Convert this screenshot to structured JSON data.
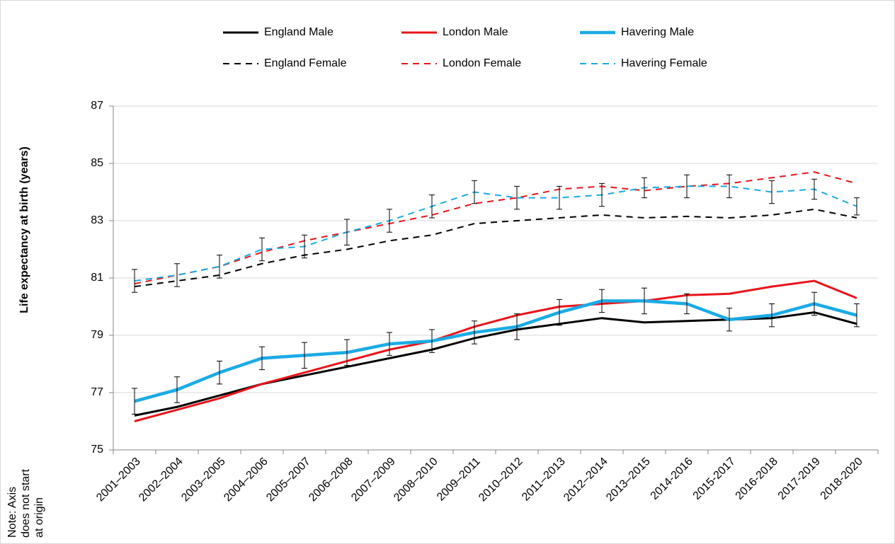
{
  "chart_data": {
    "type": "line",
    "y_label": "Life expectancy at birth (years)",
    "note": [
      "Note: Axis",
      "does not start",
      "at origin"
    ],
    "categories": [
      "2001–2003",
      "2002–2004",
      "2003–2005",
      "2004–2006",
      "2005–2007",
      "2006–2008",
      "2007–2009",
      "2008–2010",
      "2009–2011",
      "2010–2012",
      "2011–2013",
      "2012–2014",
      "2013–2015",
      "2014-2016",
      "2015-2017",
      "2016-2018",
      "2017-2019",
      "2018-2020"
    ],
    "series": [
      {
        "name": "England Male",
        "color": "#000000",
        "dash": false,
        "values": [
          76.2,
          76.5,
          76.9,
          77.3,
          77.6,
          77.9,
          78.2,
          78.5,
          78.9,
          79.2,
          79.4,
          79.6,
          79.45,
          79.5,
          79.55,
          79.6,
          79.8,
          79.4
        ]
      },
      {
        "name": "London Male",
        "color": "#e8141b",
        "dash": false,
        "values": [
          76.0,
          76.4,
          76.8,
          77.3,
          77.7,
          78.1,
          78.5,
          78.8,
          79.3,
          79.7,
          80.0,
          80.1,
          80.2,
          80.4,
          80.45,
          80.7,
          80.9,
          80.3
        ]
      },
      {
        "name": "Havering Male",
        "color": "#1aabe6",
        "dash": false,
        "values": [
          76.7,
          77.1,
          77.7,
          78.2,
          78.3,
          78.4,
          78.7,
          78.8,
          79.1,
          79.3,
          79.8,
          80.2,
          80.2,
          80.1,
          79.55,
          79.7,
          80.1,
          79.7
        ],
        "errors": [
          0.45,
          0.45,
          0.4,
          0.4,
          0.45,
          0.45,
          0.4,
          0.4,
          0.4,
          0.45,
          0.45,
          0.4,
          0.45,
          0.35,
          0.4,
          0.4,
          0.4,
          0.4
        ]
      },
      {
        "name": "England Female",
        "color": "#000000",
        "dash": true,
        "values": [
          80.7,
          80.9,
          81.1,
          81.5,
          81.8,
          82.0,
          82.3,
          82.5,
          82.9,
          83.0,
          83.1,
          83.2,
          83.1,
          83.15,
          83.1,
          83.2,
          83.4,
          83.1
        ]
      },
      {
        "name": "London Female",
        "color": "#e8141b",
        "dash": true,
        "values": [
          80.8,
          81.1,
          81.4,
          81.9,
          82.3,
          82.6,
          82.9,
          83.2,
          83.6,
          83.8,
          84.1,
          84.2,
          84.05,
          84.2,
          84.3,
          84.5,
          84.7,
          84.3
        ]
      },
      {
        "name": "Havering Female",
        "color": "#1aabe6",
        "dash": true,
        "values": [
          80.9,
          81.1,
          81.4,
          82.0,
          82.1,
          82.6,
          83.0,
          83.5,
          84.0,
          83.8,
          83.8,
          83.9,
          84.15,
          84.2,
          84.2,
          84.0,
          84.1,
          83.5
        ],
        "errors": [
          0.4,
          0.4,
          0.4,
          0.4,
          0.4,
          0.45,
          0.4,
          0.4,
          0.4,
          0.4,
          0.4,
          0.4,
          0.35,
          0.4,
          0.4,
          0.4,
          0.35,
          0.3
        ]
      }
    ],
    "ylim": [
      75,
      87
    ],
    "yticks": [
      75,
      77,
      79,
      81,
      83,
      85,
      87
    ],
    "grid": true
  }
}
